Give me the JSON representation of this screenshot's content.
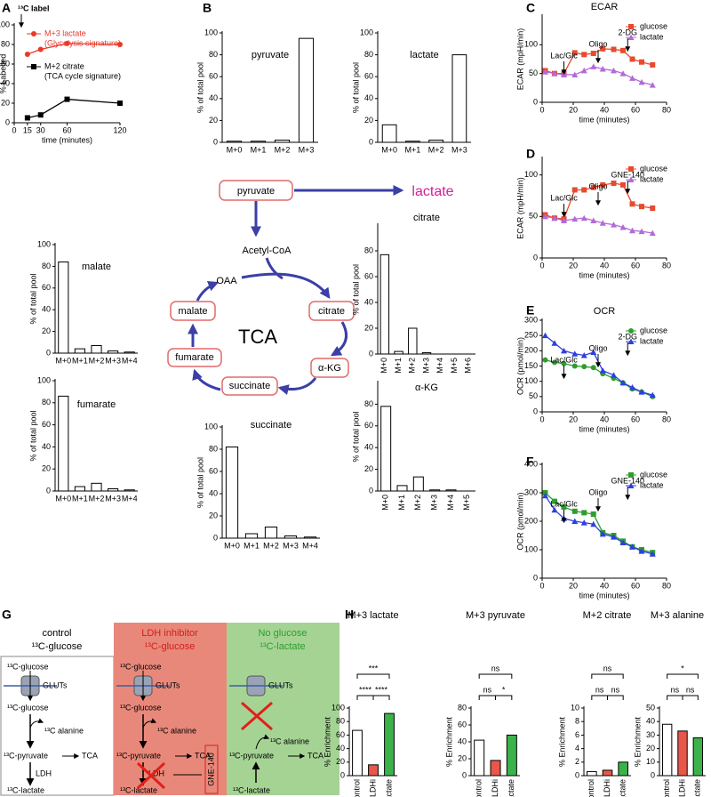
{
  "panel_labels": [
    "A",
    "B",
    "C",
    "D",
    "E",
    "F",
    "G",
    "H"
  ],
  "chart_data": [
    {
      "type": "line",
      "xlabel": "time (minutes)",
      "ylabel": "% Labelled",
      "x": [
        15,
        30,
        60,
        120
      ],
      "xlim": [
        0,
        120
      ],
      "xticks": [
        0,
        15,
        30,
        60,
        120
      ],
      "ylim": [
        0,
        100
      ],
      "yticks": [
        0,
        20,
        40,
        60,
        80,
        100
      ],
      "legend": "upper left",
      "annotations": [
        {
          "text": "¹³C label",
          "x": 0
        }
      ],
      "series": [
        {
          "name": "M+3 lactate",
          "subtitle": "(Glycolysis signature)",
          "color": "#e8382a",
          "marker": "circle",
          "values": [
            70,
            75,
            81,
            80
          ]
        },
        {
          "name": "M+2 citrate",
          "subtitle": "(TCA cycle signature)",
          "color": "#000000",
          "marker": "square",
          "values": [
            5,
            8,
            24,
            20
          ]
        }
      ]
    },
    {
      "type": "bar",
      "title": "pyruvate",
      "ylabel": "% of total pool",
      "categories": [
        "M+0",
        "M+1",
        "M+2",
        "M+3"
      ],
      "values": [
        1,
        1,
        2,
        95
      ],
      "ylim": [
        0,
        100
      ],
      "yticks": [
        0,
        20,
        40,
        60,
        80,
        100
      ],
      "color": "#ffffff"
    },
    {
      "type": "bar",
      "title": "lactate",
      "ylabel": "% of total pool",
      "categories": [
        "M+0",
        "M+1",
        "M+2",
        "M+3"
      ],
      "values": [
        16,
        1,
        2,
        80
      ],
      "ylim": [
        0,
        100
      ],
      "yticks": [
        0,
        20,
        40,
        60,
        80,
        100
      ],
      "color": "#ffffff"
    },
    {
      "type": "bar",
      "title": "malate",
      "ylabel": "% of total pool",
      "categories": [
        "M+0",
        "M+1",
        "M+2",
        "M+3",
        "M+4"
      ],
      "values": [
        84,
        4,
        7,
        2,
        1
      ],
      "ylim": [
        0,
        100
      ],
      "yticks": [
        0,
        20,
        40,
        60,
        80,
        100
      ],
      "color": "#ffffff"
    },
    {
      "type": "bar",
      "title": "citrate",
      "ylabel": "% of total pool",
      "categories": [
        "M+0",
        "M+1",
        "M+2",
        "M+3",
        "M+4",
        "M+5",
        "M+6"
      ],
      "values": [
        77,
        2,
        20,
        1,
        0,
        0,
        0
      ],
      "ylim": [
        0,
        100
      ],
      "yticks": [
        0,
        20,
        40,
        60,
        80
      ],
      "color": "#ffffff"
    },
    {
      "type": "bar",
      "title": "fumarate",
      "ylabel": "% of total pool",
      "categories": [
        "M+0",
        "M+1",
        "M+2",
        "M+3",
        "M+4"
      ],
      "values": [
        86,
        4,
        7,
        2,
        1
      ],
      "ylim": [
        0,
        100
      ],
      "yticks": [
        0,
        20,
        40,
        60,
        80,
        100
      ],
      "color": "#ffffff"
    },
    {
      "type": "bar",
      "title": "α-KG",
      "ylabel": "% of total pool",
      "categories": [
        "M+0",
        "M+1",
        "M+2",
        "M+3",
        "M+4",
        "M+5"
      ],
      "values": [
        78,
        5,
        13,
        1,
        1,
        0
      ],
      "ylim": [
        0,
        100
      ],
      "yticks": [
        0,
        20,
        40,
        60,
        80
      ],
      "color": "#ffffff"
    },
    {
      "type": "bar",
      "title": "succinate",
      "ylabel": "% of total pool",
      "categories": [
        "M+0",
        "M+1",
        "M+2",
        "M+3",
        "M+4"
      ],
      "values": [
        82,
        4,
        10,
        2,
        1
      ],
      "ylim": [
        0,
        100
      ],
      "yticks": [
        0,
        20,
        40,
        60,
        80,
        100
      ],
      "color": "#ffffff"
    },
    {
      "type": "line",
      "title": "ECAR",
      "xlabel": "time (minutes)",
      "ylabel": "ECAR (mpH/min)",
      "x": [
        2,
        8,
        14,
        21,
        27,
        33,
        39,
        46,
        52,
        58,
        64,
        71
      ],
      "xlim": [
        0,
        80
      ],
      "xticks": [
        0,
        20,
        40,
        60,
        80
      ],
      "ylim": [
        0,
        150
      ],
      "yticks": [
        0,
        50,
        100
      ],
      "legend": "upper right",
      "annotations": [
        {
          "text": "Lac/Glc",
          "x": 14
        },
        {
          "text": "Oligo",
          "x": 36
        },
        {
          "text": "2-DG",
          "x": 55
        }
      ],
      "series": [
        {
          "name": "glucose",
          "color": "#e84a2e",
          "marker": "square",
          "values": [
            55,
            50,
            50,
            86,
            83,
            85,
            93,
            92,
            90,
            75,
            70,
            65
          ]
        },
        {
          "name": "lactate",
          "color": "#b36ad8",
          "marker": "triangle",
          "values": [
            53,
            50,
            48,
            48,
            55,
            62,
            58,
            55,
            50,
            42,
            35,
            30
          ]
        }
      ]
    },
    {
      "type": "line",
      "xlabel": "time (minutes)",
      "ylabel": "ECAR (mpH/min)",
      "x": [
        2,
        8,
        14,
        21,
        27,
        33,
        39,
        46,
        52,
        58,
        64,
        71
      ],
      "xlim": [
        0,
        80
      ],
      "xticks": [
        0,
        20,
        40,
        60,
        80
      ],
      "ylim": [
        0,
        120
      ],
      "yticks": [
        0,
        50,
        100
      ],
      "legend": "upper right",
      "annotations": [
        {
          "text": "Lac/Glc",
          "x": 14
        },
        {
          "text": "Oligo",
          "x": 36
        },
        {
          "text": "GNE-140",
          "x": 55
        }
      ],
      "series": [
        {
          "name": "glucose",
          "color": "#e84a2e",
          "marker": "square",
          "values": [
            52,
            48,
            47,
            82,
            82,
            85,
            88,
            90,
            88,
            65,
            62,
            60
          ]
        },
        {
          "name": "lactate",
          "color": "#b36ad8",
          "marker": "triangle",
          "values": [
            50,
            48,
            45,
            47,
            48,
            45,
            42,
            40,
            37,
            33,
            32,
            30
          ]
        }
      ]
    },
    {
      "type": "line",
      "title": "OCR",
      "xlabel": "time (minutes)",
      "ylabel": "OCR (pmol/min)",
      "x": [
        2,
        8,
        14,
        21,
        27,
        33,
        39,
        46,
        52,
        58,
        64,
        71
      ],
      "xlim": [
        0,
        80
      ],
      "xticks": [
        0,
        20,
        40,
        60,
        80
      ],
      "ylim": [
        0,
        300
      ],
      "yticks": [
        0,
        50,
        100,
        150,
        200,
        250,
        300
      ],
      "legend": "upper right",
      "annotations": [
        {
          "text": "Lac/Glc",
          "x": 14
        },
        {
          "text": "Oligo",
          "x": 36
        },
        {
          "text": "2-DG",
          "x": 55
        }
      ],
      "series": [
        {
          "name": "glucose",
          "color": "#2e9e2e",
          "marker": "circle",
          "values": [
            170,
            162,
            158,
            150,
            148,
            145,
            125,
            110,
            95,
            75,
            65,
            50
          ]
        },
        {
          "name": "lactate",
          "color": "#2e3fe0",
          "marker": "triangle",
          "values": [
            250,
            225,
            200,
            190,
            185,
            195,
            135,
            120,
            95,
            80,
            65,
            55
          ]
        }
      ]
    },
    {
      "type": "line",
      "xlabel": "time (minutes)",
      "ylabel": "OCR (pmol/min)",
      "x": [
        2,
        8,
        14,
        21,
        27,
        33,
        39,
        46,
        52,
        58,
        64,
        71
      ],
      "xlim": [
        0,
        80
      ],
      "xticks": [
        0,
        20,
        40,
        60,
        80
      ],
      "ylim": [
        0,
        400
      ],
      "yticks": [
        0,
        100,
        200,
        300,
        400
      ],
      "legend": "upper right",
      "annotations": [
        {
          "text": "Lac/Glc",
          "x": 14
        },
        {
          "text": "Oligo",
          "x": 36
        },
        {
          "text": "GNE-140",
          "x": 55
        }
      ],
      "series": [
        {
          "name": "glucose",
          "color": "#2e9e2e",
          "marker": "square",
          "values": [
            300,
            270,
            250,
            235,
            230,
            225,
            160,
            150,
            130,
            110,
            100,
            90
          ]
        },
        {
          "name": "lactate",
          "color": "#2e3fe0",
          "marker": "triangle",
          "values": [
            290,
            240,
            210,
            200,
            195,
            190,
            155,
            145,
            125,
            110,
            95,
            85
          ]
        }
      ]
    },
    {
      "type": "bar",
      "title": "M+3 lactate",
      "ylabel": "% Enrichment",
      "categories": [
        "control",
        "LDHi",
        "lactate"
      ],
      "values": [
        67,
        16,
        92
      ],
      "colors": [
        "#ffffff",
        "#e8574a",
        "#3cb34a"
      ],
      "ylim": [
        0,
        100
      ],
      "yticks": [
        0,
        20,
        40,
        60,
        80,
        100
      ],
      "comparisons": [
        {
          "from": "control",
          "to": "LDHi",
          "label": "****"
        },
        {
          "from": "LDHi",
          "to": "lactate",
          "label": "****"
        },
        {
          "from": "control",
          "to": "lactate",
          "label": "***"
        }
      ]
    },
    {
      "type": "bar",
      "title": "M+3 pyruvate",
      "ylabel": "% Enrichment",
      "categories": [
        "control",
        "LDHi",
        "lactate"
      ],
      "values": [
        42,
        18,
        48
      ],
      "colors": [
        "#ffffff",
        "#e8574a",
        "#3cb34a"
      ],
      "ylim": [
        0,
        80
      ],
      "yticks": [
        0,
        20,
        40,
        60,
        80
      ],
      "comparisons": [
        {
          "from": "control",
          "to": "LDHi",
          "label": "ns"
        },
        {
          "from": "LDHi",
          "to": "lactate",
          "label": "*"
        },
        {
          "from": "control",
          "to": "lactate",
          "label": "ns"
        }
      ]
    },
    {
      "type": "bar",
      "title": "M+2 citrate",
      "ylabel": "% Enrichment",
      "categories": [
        "control",
        "LDHi",
        "lactate"
      ],
      "values": [
        0.6,
        0.8,
        2
      ],
      "colors": [
        "#ffffff",
        "#e8574a",
        "#3cb34a"
      ],
      "ylim": [
        0,
        10
      ],
      "yticks": [
        0,
        2,
        4,
        6,
        8,
        10
      ],
      "comparisons": [
        {
          "from": "control",
          "to": "LDHi",
          "label": "ns"
        },
        {
          "from": "LDHi",
          "to": "lactate",
          "label": "ns"
        },
        {
          "from": "control",
          "to": "lactate",
          "label": "ns"
        }
      ]
    },
    {
      "type": "bar",
      "title": "M+3 alanine",
      "ylabel": "% Enrichment",
      "categories": [
        "control",
        "LDHi",
        "lactate"
      ],
      "values": [
        38,
        33,
        28
      ],
      "colors": [
        "#ffffff",
        "#e8574a",
        "#3cb34a"
      ],
      "ylim": [
        0,
        50
      ],
      "yticks": [
        0,
        10,
        20,
        30,
        40,
        50
      ],
      "comparisons": [
        {
          "from": "control",
          "to": "LDHi",
          "label": "ns"
        },
        {
          "from": "LDHi",
          "to": "lactate",
          "label": "ns"
        },
        {
          "from": "control",
          "to": "lactate",
          "label": "*"
        }
      ]
    }
  ],
  "tca_diagram": {
    "pyruvate": "pyruvate",
    "lactate": "lactate",
    "acetyl_coa": "Acetyl-CoA",
    "oaa": "OAA",
    "citrate": "citrate",
    "akg": "α-KG",
    "succinate": "succinate",
    "fumarate": "fumarate",
    "malate": "malate",
    "cycle": "TCA"
  },
  "figure_g": {
    "panels": [
      {
        "title": "control",
        "substrate": "¹³C-glucose",
        "labels": [
          "¹³C-glucose",
          "GLUTs",
          "¹³C-glucose",
          "¹³C alanine",
          "¹³C-pyruvate",
          "TCA",
          "LDH",
          "¹³C-lactate"
        ]
      },
      {
        "title": "LDH inhibitor",
        "substrate": "¹³C-glucose",
        "labels": [
          "¹³C-glucose",
          "GLUTs",
          "¹³C-glucose",
          "¹³C alanine",
          "¹³C-pyruvate",
          "TCA",
          "LDH",
          "¹³C-lactate",
          "GNE-140"
        ]
      },
      {
        "title": "No glucose",
        "substrate": "¹³C-lactate",
        "labels": [
          "GLUTs",
          "¹³C alanine",
          "¹³C-pyruvate",
          "TCA",
          "¹³C-lactate"
        ]
      }
    ]
  }
}
